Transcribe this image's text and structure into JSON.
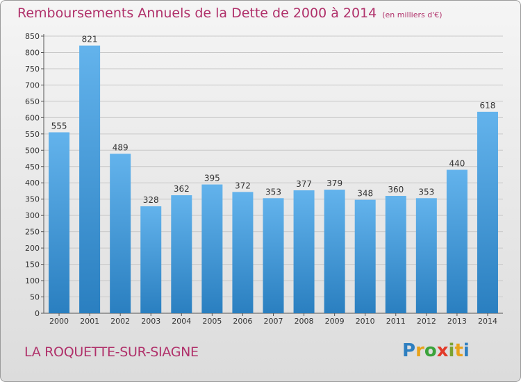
{
  "title": "Remboursements Annuels de la Dette de 2000 à 2014",
  "unit": "(en milliers d'€)",
  "commune": "LA ROQUETTE-SUR-SIAGNE",
  "brand": {
    "letters": [
      "P",
      "r",
      "o",
      "x",
      "i",
      "t",
      "i"
    ],
    "colors": [
      "#2e7fc0",
      "#e8a21a",
      "#3aa33a",
      "#e23b2a",
      "#7aa232",
      "#e8a21a",
      "#2e7fc0"
    ]
  },
  "colors": {
    "bar_light": "#63b3ec",
    "bar_dark": "#2a7fc0",
    "title": "#b0306a",
    "grid": "#c8c8c8"
  },
  "chart_data": {
    "type": "bar",
    "categories": [
      "2000",
      "2001",
      "2002",
      "2003",
      "2004",
      "2005",
      "2006",
      "2007",
      "2008",
      "2009",
      "2010",
      "2011",
      "2012",
      "2013",
      "2014"
    ],
    "values": [
      555,
      821,
      489,
      328,
      362,
      395,
      372,
      353,
      377,
      379,
      348,
      360,
      353,
      440,
      618
    ],
    "ylim": [
      0,
      850
    ],
    "yticks": [
      0,
      50,
      100,
      150,
      200,
      250,
      300,
      350,
      400,
      450,
      500,
      550,
      600,
      650,
      700,
      750,
      800,
      850
    ],
    "grid": true,
    "data_labels": true
  }
}
